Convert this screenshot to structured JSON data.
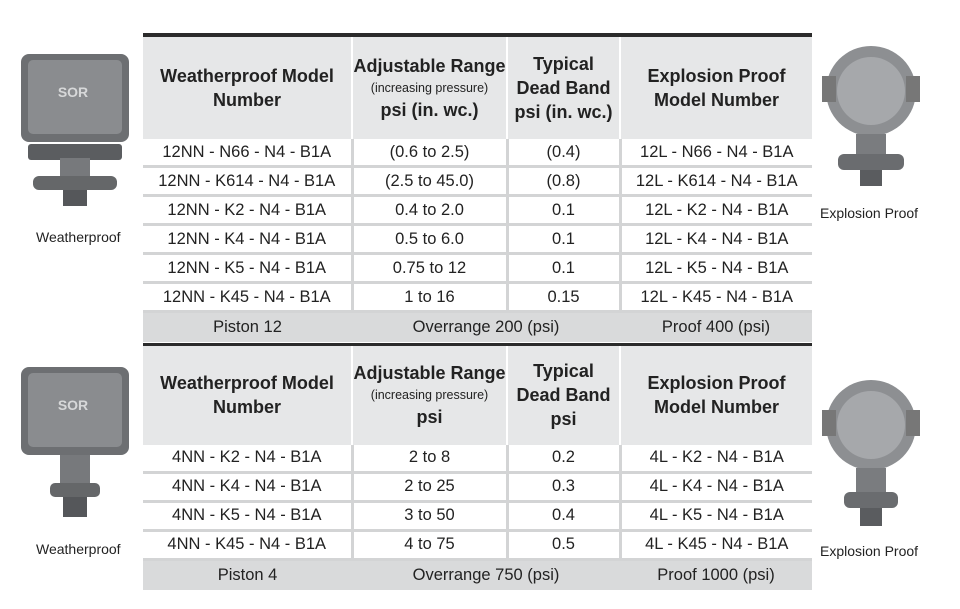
{
  "sections": [
    {
      "left_caption": "Weatherproof",
      "right_caption": "Explosion Proof",
      "header": [
        {
          "title": "Weatherproof Model Number"
        },
        {
          "title": "Adjustable Range",
          "note": "(increasing pressure)",
          "unit": "psi (in. wc.)"
        },
        {
          "title": "Typical Dead Band psi (in. wc.)"
        },
        {
          "title": "Explosion Proof Model Number"
        }
      ],
      "rows": [
        [
          "12NN - N66 - N4 - B1A",
          "(0.6 to 2.5)",
          "(0.4)",
          "12L - N66 - N4 - B1A"
        ],
        [
          "12NN - K614 - N4 - B1A",
          "(2.5 to 45.0)",
          "(0.8)",
          "12L - K614 - N4 - B1A"
        ],
        [
          "12NN - K2 - N4 - B1A",
          "0.4 to 2.0",
          "0.1",
          "12L - K2 - N4 - B1A"
        ],
        [
          "12NN - K4 - N4 - B1A",
          "0.5 to 6.0",
          "0.1",
          "12L - K4 - N4 - B1A"
        ],
        [
          "12NN - K5 - N4 - B1A",
          "0.75 to 12",
          "0.1",
          "12L - K5 - N4 - B1A"
        ],
        [
          "12NN - K45 - N4 - B1A",
          "1 to 16",
          "0.15",
          "12L - K45 - N4 - B1A"
        ]
      ],
      "footer": [
        "Piston 12",
        "Overrange 200 (psi)",
        "Proof 400 (psi)"
      ]
    },
    {
      "left_caption": "Weatherproof",
      "right_caption": "Explosion Proof",
      "header": [
        {
          "title": "Weatherproof Model Number"
        },
        {
          "title": "Adjustable Range",
          "note": "(increasing pressure)",
          "unit": "psi"
        },
        {
          "title": "Typical Dead Band psi"
        },
        {
          "title": "Explosion Proof Model Number"
        }
      ],
      "rows": [
        [
          "4NN - K2 - N4 - B1A",
          "2 to 8",
          "0.2",
          "4L - K2 - N4 - B1A"
        ],
        [
          "4NN - K4 - N4 - B1A",
          "2 to 25",
          "0.3",
          "4L - K4 - N4 - B1A"
        ],
        [
          "4NN - K5 - N4 - B1A",
          "3 to 50",
          "0.4",
          "4L - K5 - N4 - B1A"
        ],
        [
          "4NN - K45 - N4 - B1A",
          "4 to 75",
          "0.5",
          "4L - K45 - N4 - B1A"
        ]
      ],
      "footer": [
        "Piston 4",
        "Overrange 750 (psi)",
        "Proof 1000 (psi)"
      ]
    }
  ]
}
